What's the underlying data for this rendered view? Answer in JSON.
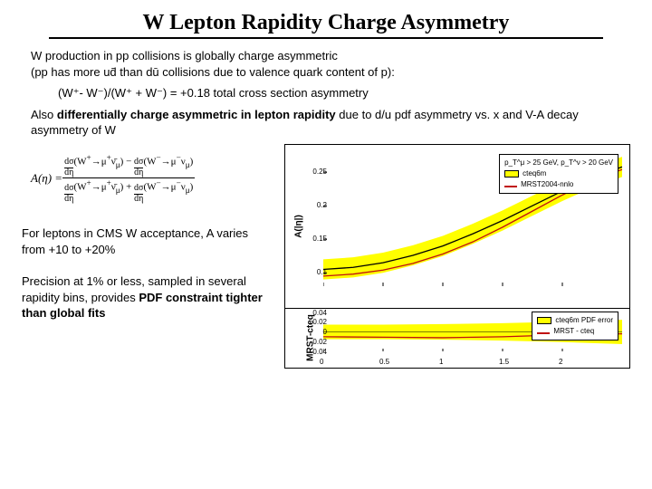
{
  "title": "W Lepton Rapidity Charge Asymmetry",
  "intro": {
    "l1": "W production in pp collisions is globally charge asymmetric",
    "l2": "(pp has more ud̄ than dū collisions due to valence quark content of p):"
  },
  "eq": "(W⁺- W⁻)/(W⁺ + W⁻) =  +0.18 total cross section asymmetry",
  "diff": {
    "t1": "Also ",
    "bold": "differentially charge asymmetric in lepton rapidity",
    "t2": " due to d/u pdf asymmetry vs. x and V-A decay asymmetry of W"
  },
  "formula": {
    "lhs": "A(η) = ",
    "num_a": "dσ/dη (W⁺→ μ⁺ν̄",
    "num_b": ") − dσ/dη (W⁻→ μ⁻ν",
    "num_c": ")",
    "den_a": "dσ/dη (W⁺→ μ⁺ν̄",
    "den_b": ") + dσ/dη (W⁻→ μ⁻ν",
    "den_c": ")",
    "sub": "μ"
  },
  "note1": "For leptons in CMS W acceptance, A varies from +10 to +20%",
  "note2": {
    "t1": "Precision at 1% or less, sampled in several rapidity bins, provides ",
    "bold": "PDF constraint tighter than global fits"
  },
  "chart_main": {
    "ylab": "A(|η|)",
    "ylim": [
      0.08,
      0.28
    ],
    "yticks": [
      0.1,
      0.15,
      0.2,
      0.25
    ],
    "xlim": [
      0,
      2.5
    ],
    "band_color": "#ffff00",
    "line1_color": "#000000",
    "line2_color": "#c01010",
    "legend": {
      "cut": "p_T^μ > 25 GeV, p_T^ν > 20 GeV",
      "a": "cteq6m",
      "b": "MRST2004-nnlo"
    },
    "series_cteq": [
      [
        0,
        0.105
      ],
      [
        0.25,
        0.108
      ],
      [
        0.5,
        0.115
      ],
      [
        0.75,
        0.126
      ],
      [
        1.0,
        0.14
      ],
      [
        1.25,
        0.158
      ],
      [
        1.5,
        0.178
      ],
      [
        1.75,
        0.2
      ],
      [
        2.0,
        0.222
      ],
      [
        2.25,
        0.242
      ],
      [
        2.5,
        0.258
      ]
    ],
    "series_mrst": [
      [
        0,
        0.095
      ],
      [
        0.25,
        0.098
      ],
      [
        0.5,
        0.104
      ],
      [
        0.75,
        0.114
      ],
      [
        1.0,
        0.128
      ],
      [
        1.25,
        0.146
      ],
      [
        1.5,
        0.168
      ],
      [
        1.75,
        0.192
      ],
      [
        2.0,
        0.216
      ],
      [
        2.25,
        0.238
      ],
      [
        2.5,
        0.254
      ]
    ],
    "band_half": 0.015
  },
  "chart_sub": {
    "ylab": "MRST-cteq",
    "ylim": [
      -0.04,
      0.04
    ],
    "yticks": [
      -0.04,
      -0.02,
      0,
      0.02,
      0.04
    ],
    "xlim": [
      0,
      2.5
    ],
    "xticks": [
      0,
      0.5,
      1,
      1.5,
      2
    ],
    "legend": {
      "a": "cteq6m PDF error",
      "b": "MRST - cteq"
    },
    "band_color": "#ffff00",
    "line_color": "#c01010",
    "diff_series": [
      [
        0,
        -0.01
      ],
      [
        0.5,
        -0.011
      ],
      [
        1.0,
        -0.012
      ],
      [
        1.5,
        -0.01
      ],
      [
        2.0,
        -0.006
      ],
      [
        2.5,
        -0.004
      ]
    ],
    "band_series": [
      [
        0,
        0.015
      ],
      [
        0.5,
        0.015
      ],
      [
        1.0,
        0.016
      ],
      [
        1.5,
        0.018
      ],
      [
        2.0,
        0.021
      ],
      [
        2.5,
        0.025
      ]
    ]
  }
}
